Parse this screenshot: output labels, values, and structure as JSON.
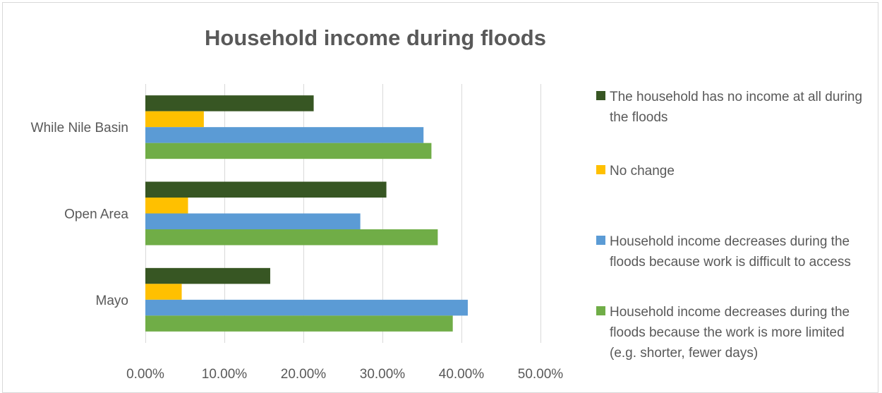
{
  "chart_data": {
    "type": "bar",
    "orientation": "horizontal",
    "title": "Household income during floods",
    "xlabel": "",
    "ylabel": "",
    "categories": [
      "While Nile Basin",
      "Open Area",
      "Mayo"
    ],
    "xlim": [
      0,
      50
    ],
    "ticks": [
      "0.00%",
      "10.00%",
      "20.00%",
      "30.00%",
      "40.00%",
      "50.00%"
    ],
    "grid": true,
    "legend_position": "right",
    "series": [
      {
        "name": "The household has no income at all during the floods",
        "color": "#375623",
        "values": [
          21.3,
          30.5,
          15.8
        ]
      },
      {
        "name": "No change",
        "color": "#ffc000",
        "values": [
          7.4,
          5.4,
          4.6
        ]
      },
      {
        "name": "Household income decreases during the floods because work is difficult to access",
        "color": "#5b9bd5",
        "values": [
          35.2,
          27.2,
          40.8
        ]
      },
      {
        "name": "Household income decreases during the floods because the work is more limited (e.g. shorter, fewer days)",
        "color": "#70ad47",
        "values": [
          36.2,
          37.0,
          38.9
        ]
      }
    ]
  }
}
